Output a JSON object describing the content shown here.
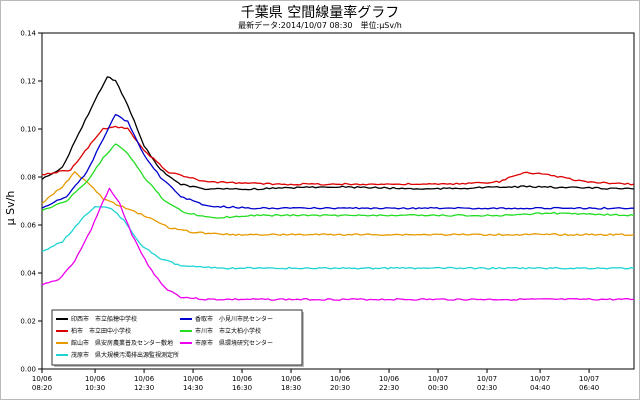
{
  "chart_data": {
    "type": "line",
    "title": "千葉県 空間線量率グラフ",
    "subtitle": "最新データ:2014/10/07 08:30　単位:μSv/h",
    "ylabel": "μ Sv/h",
    "xlabel": "",
    "ylim": [
      0.0,
      0.14
    ],
    "yticks": [
      "0.00",
      "0.02",
      "0.04",
      "0.06",
      "0.08",
      "0.10",
      "0.12",
      "0.14"
    ],
    "xlim": [
      "2014-10-06 08:20",
      "2014-10-07 08:30"
    ],
    "xticks": [
      {
        "date": "10/06",
        "time": "08:20"
      },
      {
        "date": "10/06",
        "time": "10:30"
      },
      {
        "date": "10/06",
        "time": "12:30"
      },
      {
        "date": "10/06",
        "time": "14:30"
      },
      {
        "date": "10/06",
        "time": "16:30"
      },
      {
        "date": "10/06",
        "time": "18:30"
      },
      {
        "date": "10/06",
        "time": "20:30"
      },
      {
        "date": "10/06",
        "time": "22:30"
      },
      {
        "date": "10/07",
        "time": "00:30"
      },
      {
        "date": "10/07",
        "time": "02:30"
      },
      {
        "date": "10/07",
        "time": "04:40"
      },
      {
        "date": "10/07",
        "time": "06:40"
      }
    ],
    "grid": false,
    "legend_position": "bottom-left",
    "series": [
      {
        "name": "印西市　市立船穂中学校",
        "color": "#000000",
        "points": [
          [
            "2014-10-06 08:20",
            0.079
          ],
          [
            "2014-10-06 09:10",
            0.084
          ],
          [
            "2014-10-06 09:50",
            0.098
          ],
          [
            "2014-10-06 10:30",
            0.112
          ],
          [
            "2014-10-06 11:00",
            0.122
          ],
          [
            "2014-10-06 11:20",
            0.12
          ],
          [
            "2014-10-06 11:50",
            0.11
          ],
          [
            "2014-10-06 12:30",
            0.093
          ],
          [
            "2014-10-06 13:10",
            0.083
          ],
          [
            "2014-10-06 14:00",
            0.077
          ],
          [
            "2014-10-06 15:00",
            0.075
          ],
          [
            "2014-10-06 17:00",
            0.075
          ],
          [
            "2014-10-06 20:00",
            0.076
          ],
          [
            "2014-10-07 00:00",
            0.075
          ],
          [
            "2014-10-07 04:00",
            0.076
          ],
          [
            "2014-10-07 08:30",
            0.075
          ]
        ]
      },
      {
        "name": "柏市　市立田中小学校",
        "color": "#dd0000",
        "points": [
          [
            "2014-10-06 08:20",
            0.081
          ],
          [
            "2014-10-06 09:30",
            0.083
          ],
          [
            "2014-10-06 10:20",
            0.094
          ],
          [
            "2014-10-06 10:50",
            0.1
          ],
          [
            "2014-10-06 11:20",
            0.101
          ],
          [
            "2014-10-06 11:50",
            0.1
          ],
          [
            "2014-10-06 12:30",
            0.091
          ],
          [
            "2014-10-06 13:30",
            0.082
          ],
          [
            "2014-10-06 15:00",
            0.078
          ],
          [
            "2014-10-06 18:00",
            0.077
          ],
          [
            "2014-10-07 01:00",
            0.077
          ],
          [
            "2014-10-07 03:00",
            0.078
          ],
          [
            "2014-10-07 04:00",
            0.082
          ],
          [
            "2014-10-07 05:00",
            0.081
          ],
          [
            "2014-10-07 06:30",
            0.078
          ],
          [
            "2014-10-07 08:30",
            0.077
          ]
        ]
      },
      {
        "name": "館山市　県安房農業普及センター敷地",
        "color": "#e69a00",
        "points": [
          [
            "2014-10-06 08:20",
            0.069
          ],
          [
            "2014-10-06 09:10",
            0.076
          ],
          [
            "2014-10-06 09:40",
            0.082
          ],
          [
            "2014-10-06 10:10",
            0.078
          ],
          [
            "2014-10-06 10:50",
            0.071
          ],
          [
            "2014-10-06 11:30",
            0.068
          ],
          [
            "2014-10-06 12:30",
            0.064
          ],
          [
            "2014-10-06 13:30",
            0.059
          ],
          [
            "2014-10-06 14:30",
            0.057
          ],
          [
            "2014-10-06 16:00",
            0.056
          ],
          [
            "2014-10-06 20:00",
            0.056
          ],
          [
            "2014-10-07 02:00",
            0.056
          ],
          [
            "2014-10-07 08:30",
            0.056
          ]
        ]
      },
      {
        "name": "茂原市　県大規模汚濁排出源監視測定所",
        "color": "#1ed4d4",
        "points": [
          [
            "2014-10-06 08:20",
            0.049
          ],
          [
            "2014-10-06 09:10",
            0.053
          ],
          [
            "2014-10-06 09:50",
            0.061
          ],
          [
            "2014-10-06 10:30",
            0.068
          ],
          [
            "2014-10-06 11:10",
            0.067
          ],
          [
            "2014-10-06 11:40",
            0.062
          ],
          [
            "2014-10-06 12:20",
            0.052
          ],
          [
            "2014-10-06 13:10",
            0.046
          ],
          [
            "2014-10-06 14:00",
            0.043
          ],
          [
            "2014-10-06 15:30",
            0.042
          ],
          [
            "2014-10-06 20:00",
            0.042
          ],
          [
            "2014-10-07 02:00",
            0.042
          ],
          [
            "2014-10-07 08:30",
            0.042
          ]
        ]
      },
      {
        "name": "香取市　小見川市民センター",
        "color": "#0000cc",
        "points": [
          [
            "2014-10-06 08:20",
            0.067
          ],
          [
            "2014-10-06 09:20",
            0.072
          ],
          [
            "2014-10-06 10:10",
            0.082
          ],
          [
            "2014-10-06 10:50",
            0.096
          ],
          [
            "2014-10-06 11:20",
            0.106
          ],
          [
            "2014-10-06 11:50",
            0.103
          ],
          [
            "2014-10-06 12:30",
            0.089
          ],
          [
            "2014-10-06 13:10",
            0.08
          ],
          [
            "2014-10-06 14:00",
            0.072
          ],
          [
            "2014-10-06 15:00",
            0.068
          ],
          [
            "2014-10-06 17:00",
            0.067
          ],
          [
            "2014-10-06 22:00",
            0.067
          ],
          [
            "2014-10-07 04:00",
            0.067
          ],
          [
            "2014-10-07 08:30",
            0.067
          ]
        ]
      },
      {
        "name": "市川市　市立大柏小学校",
        "color": "#22dd22",
        "points": [
          [
            "2014-10-06 08:20",
            0.066
          ],
          [
            "2014-10-06 09:20",
            0.07
          ],
          [
            "2014-10-06 10:10",
            0.078
          ],
          [
            "2014-10-06 10:50",
            0.088
          ],
          [
            "2014-10-06 11:20",
            0.094
          ],
          [
            "2014-10-06 11:50",
            0.09
          ],
          [
            "2014-10-06 12:30",
            0.08
          ],
          [
            "2014-10-06 13:20",
            0.07
          ],
          [
            "2014-10-06 14:10",
            0.065
          ],
          [
            "2014-10-06 15:30",
            0.063
          ],
          [
            "2014-10-06 17:00",
            0.064
          ],
          [
            "2014-10-06 22:00",
            0.064
          ],
          [
            "2014-10-07 03:00",
            0.064
          ],
          [
            "2014-10-07 05:00",
            0.065
          ],
          [
            "2014-10-07 08:30",
            0.064
          ]
        ]
      },
      {
        "name": "市原市　県環境研究センター",
        "color": "#ee00ee",
        "points": [
          [
            "2014-10-06 08:20",
            0.035
          ],
          [
            "2014-10-06 09:00",
            0.037
          ],
          [
            "2014-10-06 09:40",
            0.045
          ],
          [
            "2014-10-06 10:20",
            0.058
          ],
          [
            "2014-10-06 10:50",
            0.07
          ],
          [
            "2014-10-06 11:05",
            0.075
          ],
          [
            "2014-10-06 11:30",
            0.069
          ],
          [
            "2014-10-06 12:00",
            0.056
          ],
          [
            "2014-10-06 12:40",
            0.043
          ],
          [
            "2014-10-06 13:20",
            0.034
          ],
          [
            "2014-10-06 14:00",
            0.03
          ],
          [
            "2014-10-06 15:00",
            0.029
          ],
          [
            "2014-10-06 20:00",
            0.029
          ],
          [
            "2014-10-07 02:00",
            0.029
          ],
          [
            "2014-10-07 08:30",
            0.029
          ]
        ]
      }
    ]
  }
}
